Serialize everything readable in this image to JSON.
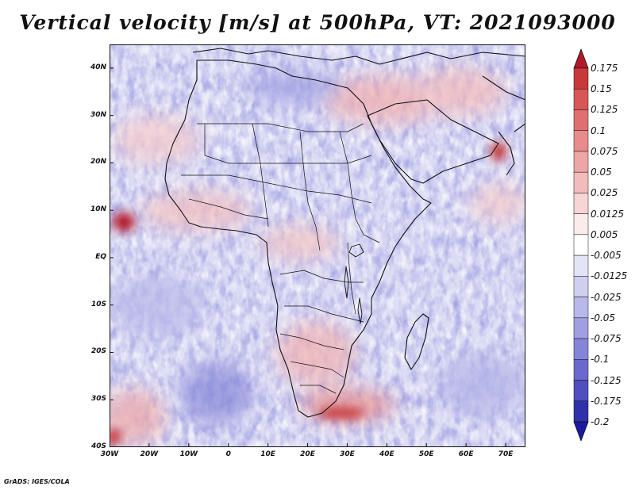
{
  "title": "Vertical velocity [m/s] at 500hPa, VT: 2021093000",
  "credit": "GrADS: IGES/COLA",
  "map": {
    "lat_labels": [
      "40N",
      "30N",
      "20N",
      "10N",
      "EQ",
      "10S",
      "20S",
      "30S",
      "40S"
    ],
    "lon_labels": [
      "30W",
      "20W",
      "10W",
      "0",
      "10E",
      "20E",
      "30E",
      "40E",
      "50E",
      "60E",
      "70E"
    ],
    "extent": {
      "lon_min": -30,
      "lon_max": 75,
      "lat_min": -40,
      "lat_max": 45
    }
  },
  "colorbar": {
    "levels": [
      "0.175",
      "0.15",
      "0.125",
      "0.1",
      "0.075",
      "0.05",
      "0.025",
      "0.0125",
      "0.005",
      "-0.005",
      "-0.0125",
      "-0.025",
      "-0.05",
      "-0.075",
      "-0.1",
      "-0.125",
      "-0.175",
      "-0.2"
    ],
    "colors": [
      "#b2182b",
      "#c83a3a",
      "#d75757",
      "#e07070",
      "#e88b8b",
      "#eea5a5",
      "#f3bcbc",
      "#f8d4d4",
      "#fcebeb",
      "#ffffff",
      "#e4e4f7",
      "#cfcff0",
      "#b8b8ea",
      "#9f9fe2",
      "#8585d8",
      "#6a6acc",
      "#4f4fc0",
      "#3030aa",
      "#1a1aa0"
    ]
  }
}
